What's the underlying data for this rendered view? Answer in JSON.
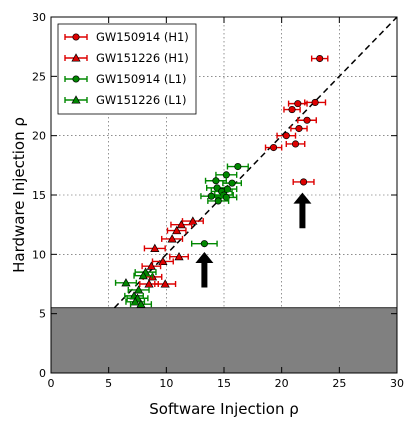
{
  "chart_data": {
    "type": "scatter",
    "xlabel": "Software Injection ρ",
    "ylabel": "Hardware Injection ρ",
    "xlim": [
      0,
      30
    ],
    "ylim": [
      0,
      30
    ],
    "x_ticks": [
      "0",
      "5",
      "10",
      "15",
      "20",
      "25",
      "30"
    ],
    "y_ticks": [
      "0",
      "5",
      "10",
      "15",
      "20",
      "25",
      "30"
    ],
    "grid": true,
    "legend_position": "top-left",
    "reference_line": {
      "style": "dashed",
      "color": "#000000",
      "points": [
        [
          5.5,
          5.5
        ],
        [
          30,
          30
        ]
      ]
    },
    "threshold_region": {
      "y_max": 5.5,
      "color": "#808080"
    },
    "arrows": [
      {
        "x": 13.3,
        "y_tip": 10.2,
        "y_tail": 7.2,
        "color": "#000000"
      },
      {
        "x": 21.8,
        "y_tip": 15.2,
        "y_tail": 12.2,
        "color": "#000000"
      }
    ],
    "series": [
      {
        "name": "GW150914 (H1)",
        "color": "#dd0000",
        "marker": "circle",
        "points": [
          {
            "x": 23.3,
            "y": 26.5,
            "xerr": 0.7
          },
          {
            "x": 21.4,
            "y": 22.7,
            "xerr": 0.8
          },
          {
            "x": 22.9,
            "y": 22.8,
            "xerr": 0.9
          },
          {
            "x": 20.9,
            "y": 22.2,
            "xerr": 0.7
          },
          {
            "x": 22.2,
            "y": 21.3,
            "xerr": 0.8
          },
          {
            "x": 21.5,
            "y": 20.6,
            "xerr": 0.7
          },
          {
            "x": 20.4,
            "y": 20.0,
            "xerr": 0.8
          },
          {
            "x": 21.2,
            "y": 19.3,
            "xerr": 0.8
          },
          {
            "x": 19.3,
            "y": 19.0,
            "xerr": 0.7
          },
          {
            "x": 21.9,
            "y": 16.1,
            "xerr": 0.9
          }
        ]
      },
      {
        "name": "GW151226 (H1)",
        "color": "#dd0000",
        "marker": "triangle",
        "points": [
          {
            "x": 12.3,
            "y": 12.8,
            "xerr": 0.9
          },
          {
            "x": 11.3,
            "y": 12.5,
            "xerr": 0.9
          },
          {
            "x": 10.9,
            "y": 12.0,
            "xerr": 0.8
          },
          {
            "x": 10.5,
            "y": 11.3,
            "xerr": 0.9
          },
          {
            "x": 9.0,
            "y": 10.5,
            "xerr": 0.9
          },
          {
            "x": 11.1,
            "y": 9.8,
            "xerr": 0.8
          },
          {
            "x": 9.7,
            "y": 9.4,
            "xerr": 0.9
          },
          {
            "x": 8.7,
            "y": 9.0,
            "xerr": 0.8
          },
          {
            "x": 8.8,
            "y": 8.1,
            "xerr": 0.8
          },
          {
            "x": 9.9,
            "y": 7.5,
            "xerr": 0.9
          },
          {
            "x": 8.5,
            "y": 7.5,
            "xerr": 0.8
          }
        ]
      },
      {
        "name": "GW150914 (L1)",
        "color": "#008800",
        "marker": "circle",
        "points": [
          {
            "x": 16.2,
            "y": 17.4,
            "xerr": 0.9
          },
          {
            "x": 15.2,
            "y": 16.7,
            "xerr": 0.9
          },
          {
            "x": 14.3,
            "y": 16.2,
            "xerr": 0.9
          },
          {
            "x": 15.7,
            "y": 16.0,
            "xerr": 0.8
          },
          {
            "x": 14.4,
            "y": 15.6,
            "xerr": 0.9
          },
          {
            "x": 15.3,
            "y": 15.5,
            "xerr": 0.8
          },
          {
            "x": 14.8,
            "y": 15.3,
            "xerr": 0.9
          },
          {
            "x": 15.0,
            "y": 15.0,
            "xerr": 0.8
          },
          {
            "x": 13.9,
            "y": 14.9,
            "xerr": 0.9
          },
          {
            "x": 15.2,
            "y": 14.8,
            "xerr": 0.9
          },
          {
            "x": 14.5,
            "y": 14.5,
            "xerr": 0.9
          },
          {
            "x": 13.3,
            "y": 10.9,
            "xerr": 1.1
          }
        ]
      },
      {
        "name": "GW151226 (L1)",
        "color": "#008800",
        "marker": "triangle",
        "points": [
          {
            "x": 8.2,
            "y": 8.5,
            "xerr": 0.9
          },
          {
            "x": 8.0,
            "y": 8.2,
            "xerr": 0.8
          },
          {
            "x": 6.5,
            "y": 7.6,
            "xerr": 0.9
          },
          {
            "x": 7.6,
            "y": 7.0,
            "xerr": 0.9
          },
          {
            "x": 7.2,
            "y": 6.5,
            "xerr": 0.8
          },
          {
            "x": 7.5,
            "y": 6.3,
            "xerr": 0.9
          },
          {
            "x": 7.3,
            "y": 6.0,
            "xerr": 0.8
          },
          {
            "x": 7.8,
            "y": 5.8,
            "xerr": 0.9
          }
        ]
      }
    ]
  }
}
